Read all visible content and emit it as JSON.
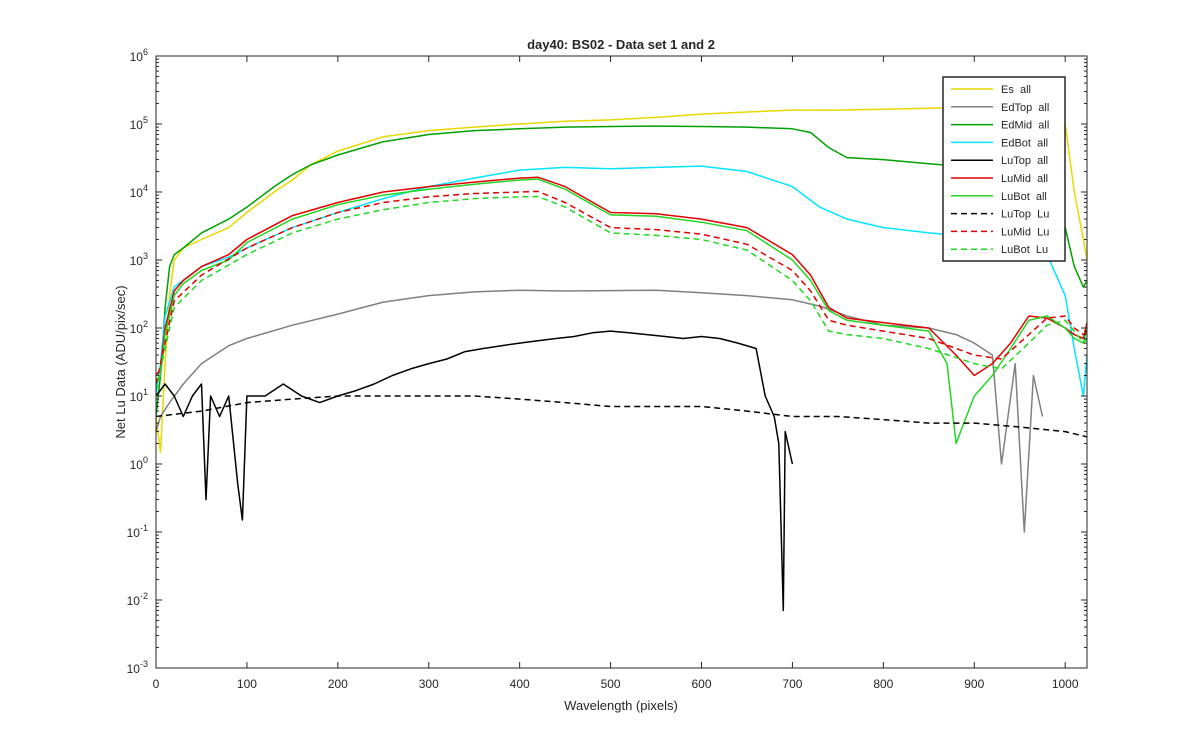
{
  "chart_data": {
    "type": "line",
    "title": "day40: BS02 - Data set 1 and 2",
    "xlabel": "Wavelength (pixels)",
    "ylabel": "Net Lu Data (ADU/pix/sec)",
    "xlim": [
      0,
      1024
    ],
    "ylim": [
      0.001,
      1000000
    ],
    "yscale": "log",
    "grid": false,
    "legend_position": "top-right",
    "x_ticks": [
      0,
      100,
      200,
      300,
      400,
      500,
      600,
      700,
      800,
      900,
      1000
    ],
    "y_ticks": [
      {
        "value": 0.001,
        "base": "10",
        "exp": "-3"
      },
      {
        "value": 0.01,
        "base": "10",
        "exp": "-2"
      },
      {
        "value": 0.1,
        "base": "10",
        "exp": "-1"
      },
      {
        "value": 1,
        "base": "10",
        "exp": "0"
      },
      {
        "value": 10,
        "base": "10",
        "exp": "1"
      },
      {
        "value": 100,
        "base": "10",
        "exp": "2"
      },
      {
        "value": 1000,
        "base": "10",
        "exp": "3"
      },
      {
        "value": 10000,
        "base": "10",
        "exp": "4"
      },
      {
        "value": 100000,
        "base": "10",
        "exp": "5"
      },
      {
        "value": 1000000,
        "base": "10",
        "exp": "6"
      }
    ],
    "series": [
      {
        "name": "Es  all",
        "color": "#E8D800",
        "dash": "solid",
        "x": [
          0,
          5,
          10,
          15,
          20,
          30,
          50,
          80,
          100,
          130,
          150,
          170,
          200,
          250,
          300,
          350,
          400,
          450,
          500,
          550,
          600,
          650,
          700,
          750,
          800,
          850,
          900,
          950,
          980,
          1000,
          1010,
          1020,
          1024
        ],
        "y": [
          5,
          1.5,
          30,
          300,
          1000,
          1500,
          2000,
          3000,
          5000,
          10000,
          15000,
          25000,
          40000,
          65000,
          80000,
          90000,
          100000,
          110000,
          115000,
          125000,
          140000,
          150000,
          160000,
          160000,
          165000,
          170000,
          175000,
          180000,
          200000,
          100000,
          10000,
          2000,
          1000
        ]
      },
      {
        "name": "EdTop  all",
        "color": "#808080",
        "dash": "solid",
        "x": [
          0,
          5,
          15,
          30,
          50,
          80,
          100,
          150,
          200,
          250,
          300,
          350,
          400,
          450,
          500,
          550,
          600,
          650,
          700,
          730,
          760,
          800,
          850,
          880,
          900,
          920,
          930,
          945,
          955,
          965,
          975
        ],
        "y": [
          3,
          5,
          8,
          15,
          30,
          55,
          70,
          110,
          160,
          240,
          300,
          340,
          360,
          350,
          355,
          360,
          330,
          300,
          260,
          210,
          150,
          110,
          100,
          80,
          60,
          40,
          1,
          30,
          0.1,
          20,
          5
        ]
      },
      {
        "name": "EdMid  all",
        "color": "#00A000",
        "dash": "solid",
        "x": [
          0,
          5,
          10,
          15,
          20,
          30,
          50,
          80,
          100,
          130,
          150,
          170,
          200,
          250,
          300,
          350,
          400,
          450,
          500,
          550,
          600,
          650,
          700,
          720,
          740,
          760,
          800,
          850,
          900,
          950,
          980,
          1000,
          1010,
          1020,
          1024
        ],
        "y": [
          5,
          20,
          200,
          800,
          1200,
          1500,
          2500,
          4000,
          6000,
          12000,
          18000,
          25000,
          35000,
          55000,
          70000,
          80000,
          85000,
          90000,
          92000,
          93000,
          92000,
          90000,
          85000,
          75000,
          45000,
          32000,
          30000,
          26000,
          23000,
          20000,
          12000,
          3000,
          800,
          400,
          500
        ]
      },
      {
        "name": "EdBot  all",
        "color": "#00E5FF",
        "dash": "solid",
        "x": [
          0,
          5,
          10,
          20,
          50,
          80,
          100,
          150,
          200,
          250,
          300,
          350,
          400,
          450,
          500,
          550,
          600,
          650,
          700,
          730,
          760,
          800,
          850,
          900,
          950,
          980,
          1000,
          1010,
          1020,
          1024
        ],
        "y": [
          10,
          30,
          150,
          400,
          800,
          1100,
          1500,
          3000,
          5000,
          8000,
          12000,
          16000,
          21000,
          23000,
          22000,
          23000,
          24000,
          20000,
          12000,
          6000,
          4000,
          3000,
          2500,
          2200,
          1900,
          1200,
          300,
          50,
          10,
          40
        ]
      },
      {
        "name": "LuTop  all",
        "color": "#000000",
        "dash": "solid",
        "x": [
          0,
          10,
          20,
          30,
          40,
          50,
          55,
          60,
          70,
          80,
          90,
          95,
          100,
          120,
          140,
          160,
          180,
          200,
          220,
          240,
          260,
          280,
          300,
          320,
          340,
          360,
          380,
          400,
          420,
          440,
          460,
          480,
          500,
          520,
          540,
          560,
          580,
          600,
          620,
          640,
          660,
          670,
          680,
          685,
          690,
          692,
          700
        ],
        "y": [
          10,
          15,
          10,
          5,
          10,
          15,
          0.3,
          10,
          5,
          10,
          0.5,
          0.15,
          10,
          10,
          15,
          10,
          8,
          10,
          12,
          15,
          20,
          25,
          30,
          35,
          45,
          50,
          55,
          60,
          65,
          70,
          75,
          85,
          90,
          85,
          80,
          75,
          70,
          75,
          70,
          60,
          50,
          10,
          5,
          2,
          0.007,
          3,
          1
        ]
      },
      {
        "name": "LuMid  all",
        "color": "#E00000",
        "dash": "solid",
        "x": [
          0,
          5,
          10,
          20,
          30,
          50,
          80,
          100,
          150,
          200,
          250,
          300,
          350,
          400,
          420,
          450,
          500,
          550,
          600,
          650,
          700,
          720,
          740,
          760,
          800,
          850,
          880,
          900,
          920,
          940,
          960,
          980,
          1000,
          1010,
          1020,
          1024
        ],
        "y": [
          20,
          25,
          100,
          350,
          500,
          800,
          1200,
          2000,
          4500,
          7000,
          10000,
          12000,
          14000,
          16000,
          16500,
          12000,
          5000,
          4800,
          4000,
          3000,
          1200,
          600,
          200,
          140,
          120,
          100,
          40,
          20,
          30,
          60,
          150,
          140,
          100,
          80,
          70,
          120
        ]
      },
      {
        "name": "LuBot  all",
        "color": "#22D622",
        "dash": "solid",
        "x": [
          0,
          5,
          10,
          20,
          30,
          50,
          80,
          100,
          150,
          200,
          250,
          300,
          350,
          400,
          420,
          450,
          500,
          550,
          600,
          650,
          700,
          720,
          740,
          760,
          800,
          850,
          870,
          880,
          900,
          920,
          940,
          960,
          980,
          1000,
          1010,
          1020,
          1024
        ],
        "y": [
          15,
          20,
          80,
          300,
          450,
          700,
          1000,
          1800,
          4000,
          6500,
          9000,
          11000,
          13000,
          15000,
          15500,
          11000,
          4600,
          4400,
          3600,
          2700,
          1000,
          500,
          180,
          130,
          110,
          90,
          30,
          2,
          10,
          20,
          50,
          130,
          150,
          100,
          70,
          60,
          100
        ]
      },
      {
        "name": "LuTop  Lu",
        "color": "#000000",
        "dash": "dashed",
        "x": [
          0,
          50,
          100,
          150,
          200,
          250,
          300,
          350,
          400,
          450,
          500,
          550,
          600,
          650,
          700,
          750,
          800,
          850,
          900,
          950,
          1000,
          1024
        ],
        "y": [
          5,
          6,
          8,
          9,
          10,
          10,
          10,
          10,
          9,
          8,
          7,
          7,
          7,
          6,
          5,
          5,
          4.5,
          4,
          4,
          3.5,
          3,
          2.5
        ]
      },
      {
        "name": "LuMid  Lu",
        "color": "#E00000",
        "dash": "dashed",
        "x": [
          0,
          10,
          20,
          50,
          100,
          150,
          200,
          250,
          300,
          350,
          400,
          420,
          450,
          500,
          550,
          600,
          650,
          700,
          720,
          740,
          760,
          800,
          850,
          900,
          930,
          960,
          980,
          1000,
          1010,
          1020,
          1024
        ],
        "y": [
          15,
          60,
          250,
          600,
          1500,
          3000,
          5000,
          7000,
          8500,
          9500,
          10000,
          10200,
          7000,
          3000,
          2800,
          2400,
          1700,
          700,
          350,
          130,
          110,
          90,
          70,
          40,
          35,
          80,
          140,
          150,
          100,
          80,
          90
        ]
      },
      {
        "name": "LuBot  Lu",
        "color": "#22D622",
        "dash": "dashed",
        "x": [
          0,
          10,
          20,
          50,
          100,
          150,
          200,
          250,
          300,
          350,
          400,
          420,
          450,
          500,
          550,
          600,
          650,
          700,
          720,
          740,
          760,
          800,
          850,
          900,
          930,
          960,
          980,
          1000,
          1010,
          1020,
          1024
        ],
        "y": [
          12,
          50,
          200,
          500,
          1200,
          2500,
          4000,
          5500,
          7000,
          8000,
          8500,
          8600,
          6000,
          2500,
          2300,
          2000,
          1400,
          500,
          250,
          90,
          80,
          70,
          50,
          30,
          25,
          60,
          110,
          130,
          90,
          60,
          70
        ]
      }
    ]
  }
}
